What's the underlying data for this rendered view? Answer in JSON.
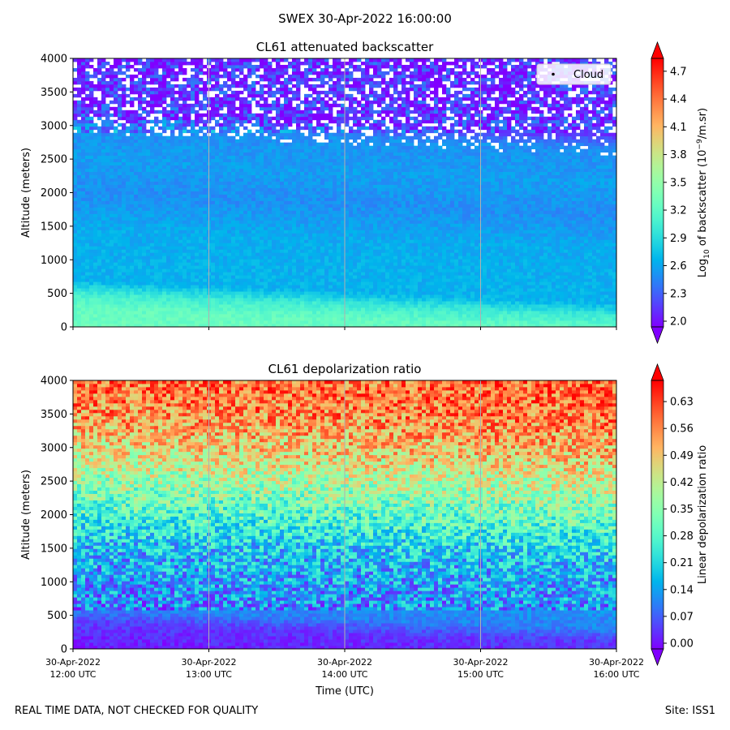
{
  "suptitle": "SWEX 30-Apr-2022 16:00:00",
  "footer": {
    "left": "REAL TIME DATA, NOT CHECKED FOR QUALITY",
    "right": "Site: ISS1"
  },
  "chart_data": [
    {
      "type": "heatmap",
      "title": "CL61 attenuated backscatter",
      "ylabel": "Altitude (meters)",
      "xlabel": "",
      "ylim": [
        0,
        4000
      ],
      "yticks": [
        0,
        500,
        1000,
        1500,
        2000,
        2500,
        3000,
        3500,
        4000
      ],
      "x_range_hours_utc": [
        12,
        16
      ],
      "colorbar": {
        "label_prefix": "Log",
        "label_sub": "10",
        "label_mid": " of backscatter (10",
        "label_sup": "−9",
        "label_suffix": "/m.sr)",
        "range": [
          2.0,
          4.9
        ],
        "ticks": [
          "2.0",
          "2.3",
          "2.6",
          "2.9",
          "3.2",
          "3.5",
          "3.8",
          "4.1",
          "4.4",
          "4.7"
        ],
        "extend": "both"
      },
      "legend": {
        "entries": [
          "Cloud"
        ],
        "location": "upper right"
      },
      "profile": [
        {
          "altitude": 0,
          "value": 3.35
        },
        {
          "altitude": 300,
          "value": 3.3
        },
        {
          "altitude": 500,
          "value": 3.1
        },
        {
          "altitude": 700,
          "value": 2.72
        },
        {
          "altitude": 1500,
          "value": 2.68
        },
        {
          "altitude": 2000,
          "value": 2.55
        },
        {
          "altitude": 2500,
          "value": 2.62
        },
        {
          "altitude": 3000,
          "value": 2.55
        },
        {
          "altitude": 3200,
          "value": 2.2
        },
        {
          "altitude": 4000,
          "value": 2.15
        }
      ]
    },
    {
      "type": "heatmap",
      "title": "CL61 depolarization ratio",
      "ylabel": "Altitude (meters)",
      "xlabel": "Time (UTC)",
      "ylim": [
        0,
        4000
      ],
      "yticks": [
        0,
        500,
        1000,
        1500,
        2000,
        2500,
        3000,
        3500,
        4000
      ],
      "x_range_hours_utc": [
        12,
        16
      ],
      "xtick_labels": [
        [
          "30-Apr-2022",
          "12:00 UTC"
        ],
        [
          "30-Apr-2022",
          "13:00 UTC"
        ],
        [
          "30-Apr-2022",
          "14:00 UTC"
        ],
        [
          "30-Apr-2022",
          "15:00 UTC"
        ],
        [
          "30-Apr-2022",
          "16:00 UTC"
        ]
      ],
      "colorbar": {
        "label": "Linear depolarization ratio",
        "range": [
          0.0,
          0.7
        ],
        "ticks": [
          "0.00",
          "0.07",
          "0.14",
          "0.21",
          "0.28",
          "0.35",
          "0.42",
          "0.49",
          "0.56",
          "0.63"
        ],
        "extend": "both"
      },
      "profile": [
        {
          "altitude": 0,
          "value": 0.02
        },
        {
          "altitude": 400,
          "value": 0.05
        },
        {
          "altitude": 600,
          "value": 0.12
        },
        {
          "altitude": 1500,
          "value": 0.18
        },
        {
          "altitude": 2000,
          "value": 0.28
        },
        {
          "altitude": 2500,
          "value": 0.38
        },
        {
          "altitude": 3000,
          "value": 0.48
        },
        {
          "altitude": 3500,
          "value": 0.56
        },
        {
          "altitude": 4000,
          "value": 0.6
        }
      ]
    }
  ]
}
